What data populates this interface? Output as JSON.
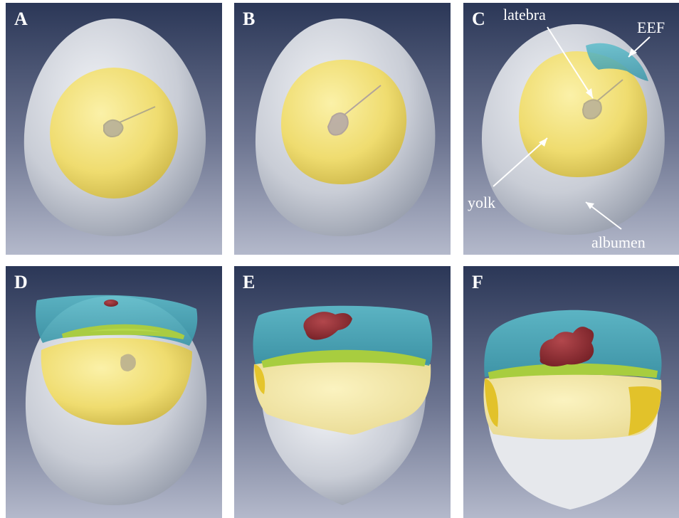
{
  "panels": [
    {
      "id": "A",
      "label": "A"
    },
    {
      "id": "B",
      "label": "B"
    },
    {
      "id": "C",
      "label": "C"
    },
    {
      "id": "D",
      "label": "D"
    },
    {
      "id": "E",
      "label": "E"
    },
    {
      "id": "F",
      "label": "F"
    }
  ],
  "annotations": {
    "latebra": "latebra",
    "eef": "EEF",
    "yolk": "yolk",
    "albumen": "albumen"
  },
  "colors": {
    "background_top": "#2d3a5a",
    "background_bottom": "#aeb3c7",
    "albumen": "#cdd2dc",
    "yolk": "#f2e27a",
    "latebra": "#a9a39a",
    "eef": "#4ab0c0",
    "embryo": "#8a2a30",
    "membrane_green": "#b5d84a"
  }
}
